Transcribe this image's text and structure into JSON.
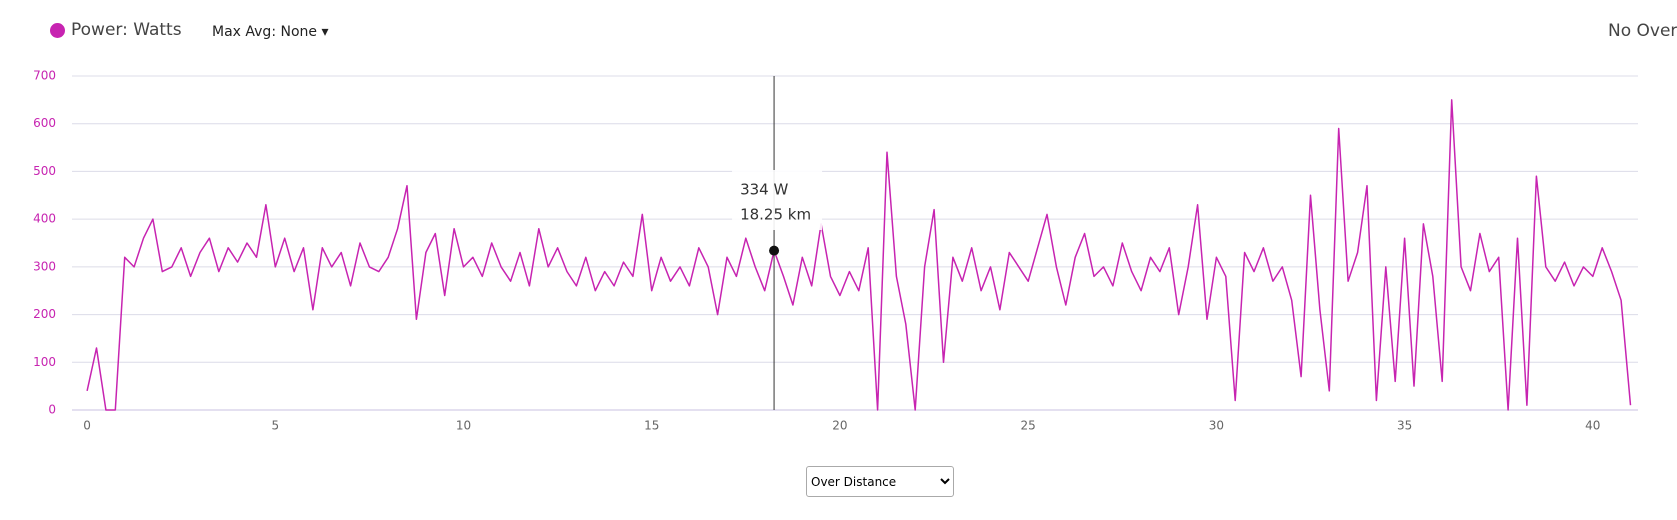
{
  "chart_data": {
    "type": "line",
    "legend_label": "Power: Watts",
    "max_avg_label": "Max Avg: None ▾",
    "overlay_label": "No Overl",
    "mode_select": "Over Distance",
    "xlim": [
      -0.4,
      41.2
    ],
    "xticks": [
      0,
      5,
      10,
      15,
      20,
      25,
      30,
      35,
      40
    ],
    "ylim": [
      0,
      700
    ],
    "yticks": [
      0,
      100,
      200,
      300,
      400,
      500,
      600,
      700
    ],
    "grid": true,
    "x": [
      0,
      0.25,
      0.5,
      0.75,
      1,
      1.25,
      1.5,
      1.75,
      2,
      2.25,
      2.5,
      2.75,
      3,
      3.25,
      3.5,
      3.75,
      4,
      4.25,
      4.5,
      4.75,
      5,
      5.25,
      5.5,
      5.75,
      6,
      6.25,
      6.5,
      6.75,
      7,
      7.25,
      7.5,
      7.75,
      8,
      8.25,
      8.5,
      8.75,
      9,
      9.25,
      9.5,
      9.75,
      10,
      10.25,
      10.5,
      10.75,
      11,
      11.25,
      11.5,
      11.75,
      12,
      12.25,
      12.5,
      12.75,
      13,
      13.25,
      13.5,
      13.75,
      14,
      14.25,
      14.5,
      14.75,
      15,
      15.25,
      15.5,
      15.75,
      16,
      16.25,
      16.5,
      16.75,
      17,
      17.25,
      17.5,
      17.75,
      18,
      18.25,
      18.5,
      18.75,
      19,
      19.25,
      19.5,
      19.75,
      20,
      20.25,
      20.5,
      20.75,
      21,
      21.25,
      21.5,
      21.75,
      22,
      22.25,
      22.5,
      22.75,
      23,
      23.25,
      23.5,
      23.75,
      24,
      24.25,
      24.5,
      24.75,
      25,
      25.25,
      25.5,
      25.75,
      26,
      26.25,
      26.5,
      26.75,
      27,
      27.25,
      27.5,
      27.75,
      28,
      28.25,
      28.5,
      28.75,
      29,
      29.25,
      29.5,
      29.75,
      30,
      30.25,
      30.5,
      30.75,
      31,
      31.25,
      31.5,
      31.75,
      32,
      32.25,
      32.5,
      32.75,
      33,
      33.25,
      33.5,
      33.75,
      34,
      34.25,
      34.5,
      34.75,
      35,
      35.25,
      35.5,
      35.75,
      36,
      36.25,
      36.5,
      36.75,
      37,
      37.25,
      37.5,
      37.75,
      38,
      38.25,
      38.5,
      38.75,
      39,
      39.25,
      39.5,
      39.75,
      40,
      40.25,
      40.5,
      40.75,
      41
    ],
    "series": [
      {
        "name": "Power: Watts",
        "color": "#c724b1",
        "values": [
          40,
          130,
          0,
          0,
          320,
          300,
          360,
          400,
          290,
          300,
          340,
          280,
          330,
          360,
          290,
          340,
          310,
          350,
          320,
          430,
          300,
          360,
          290,
          340,
          210,
          340,
          300,
          330,
          260,
          350,
          300,
          290,
          320,
          380,
          470,
          190,
          330,
          370,
          240,
          380,
          300,
          320,
          280,
          350,
          300,
          270,
          330,
          260,
          380,
          300,
          340,
          290,
          260,
          320,
          250,
          290,
          260,
          310,
          280,
          410,
          250,
          320,
          270,
          300,
          260,
          340,
          300,
          200,
          320,
          280,
          360,
          300,
          250,
          334,
          280,
          220,
          320,
          260,
          390,
          280,
          240,
          290,
          250,
          340,
          0,
          540,
          280,
          180,
          0,
          300,
          420,
          100,
          320,
          270,
          340,
          250,
          300,
          210,
          330,
          300,
          270,
          340,
          410,
          300,
          220,
          320,
          370,
          280,
          300,
          260,
          350,
          290,
          250,
          320,
          290,
          340,
          200,
          300,
          430,
          190,
          320,
          280,
          20,
          330,
          290,
          340,
          270,
          300,
          230,
          70,
          450,
          210,
          40,
          590,
          270,
          330,
          470,
          20,
          300,
          60,
          360,
          50,
          390,
          280,
          60,
          650,
          300,
          250,
          370,
          290,
          320,
          0,
          360,
          10,
          490,
          300,
          270,
          310,
          260,
          300,
          280,
          340,
          290,
          230,
          10
        ]
      }
    ],
    "tooltip": {
      "x": 18.25,
      "y": 334,
      "y_label": "334 W",
      "x_label": "18.25 km"
    }
  }
}
